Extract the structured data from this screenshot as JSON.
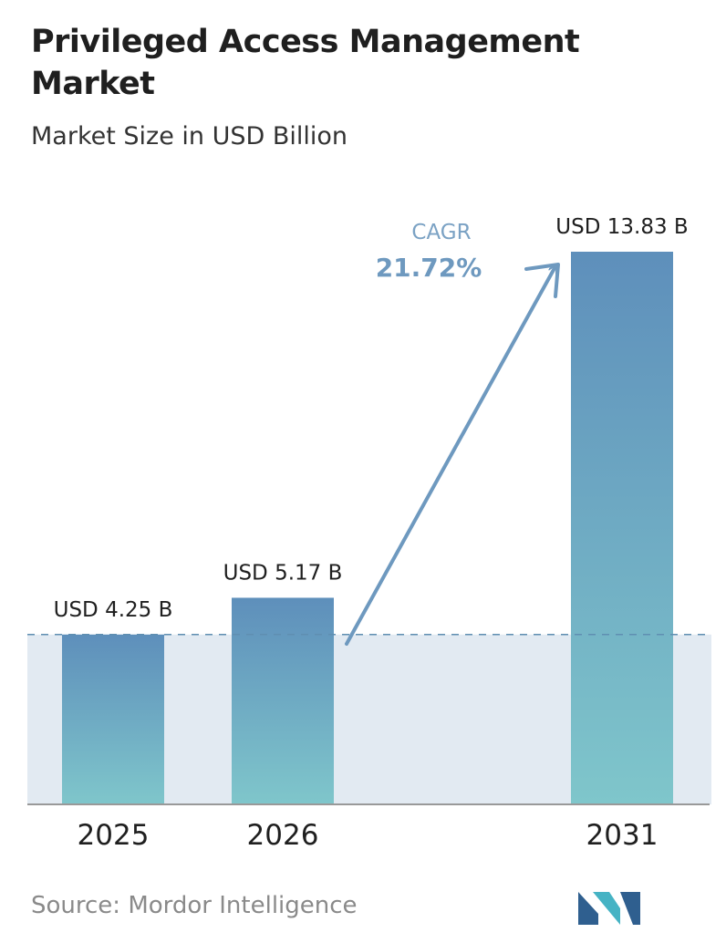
{
  "header": {
    "title": "Privileged Access Management Market",
    "subtitle": "Market Size in USD Billion"
  },
  "chart_data": {
    "type": "bar",
    "categories": [
      "2025",
      "2026",
      "2031"
    ],
    "values": [
      4.25,
      5.17,
      13.83
    ],
    "value_labels": [
      "USD 4.25 B",
      "USD 5.17 B",
      "USD 13.83 B"
    ],
    "ylim": [
      0,
      13.83
    ],
    "grid": false,
    "cagr": {
      "label": "CAGR",
      "value": "21.72%"
    },
    "colors": {
      "bar_top": "#5e8fbb",
      "bar_bottom": "#7fc6cb",
      "band": "#e2eaf2",
      "arrow": "#6e99bf",
      "dashed": "#5f8fb1",
      "axis": "#999999"
    }
  },
  "footer": {
    "source": "Source: Mordor Intelligence"
  },
  "logo": {
    "icon": "mordor-intelligence-logo",
    "colors": [
      "#2f5f8f",
      "#46b3c4"
    ]
  }
}
